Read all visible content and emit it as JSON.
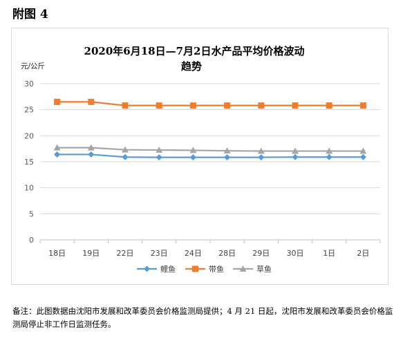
{
  "figure_label": "附图 4",
  "note": "备注：此图数据由沈阳市发展和改革委员会价格监测局提供；4 月 21 日起，沈阳市发展和改革委员会价格监测局停止非工作日监测任务。",
  "chart_data": {
    "type": "line",
    "title_line1": "2020年6月18日—7月2日水产品平均价格波动",
    "title_line2": "趋势",
    "ylabel": "元/公斤",
    "xlabel": "",
    "ylim": [
      0,
      30
    ],
    "yticks": [
      0,
      5,
      10,
      15,
      20,
      25,
      30
    ],
    "grid": true,
    "legend_position": "bottom",
    "categories": [
      "18日",
      "19日",
      "22日",
      "23日",
      "24日",
      "28日",
      "29日",
      "30日",
      "1日",
      "2日"
    ],
    "series": [
      {
        "name": "鲤鱼",
        "color": "#5b9bd5",
        "marker": "diamond",
        "values": [
          16.4,
          16.4,
          15.9,
          15.85,
          15.85,
          15.85,
          15.85,
          15.9,
          15.9,
          15.9
        ]
      },
      {
        "name": "带鱼",
        "color": "#ed7d31",
        "marker": "square",
        "values": [
          26.5,
          26.5,
          25.8,
          25.8,
          25.8,
          25.8,
          25.8,
          25.8,
          25.8,
          25.8
        ]
      },
      {
        "name": "草鱼",
        "color": "#a5a5a5",
        "marker": "triangle",
        "values": [
          17.7,
          17.7,
          17.3,
          17.25,
          17.2,
          17.1,
          17.05,
          17.05,
          17.05,
          17.05
        ]
      }
    ]
  }
}
